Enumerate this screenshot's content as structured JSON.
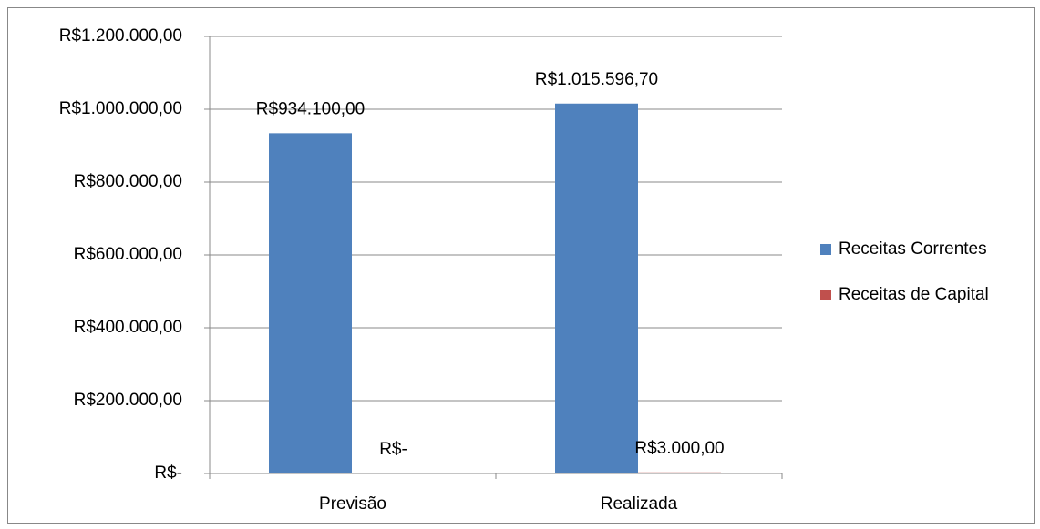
{
  "chart_data": {
    "type": "bar",
    "categories": [
      "Previsão",
      "Realizada"
    ],
    "series": [
      {
        "name": "Receitas Correntes",
        "color": "#4f81bd",
        "values": [
          934100,
          1015596.7
        ],
        "value_labels": [
          "R$934.100,00",
          "R$1.015.596,70"
        ]
      },
      {
        "name": "Receitas de Capital",
        "color": "#c0504d",
        "values": [
          0,
          3000
        ],
        "value_labels": [
          "R$-",
          "R$3.000,00"
        ]
      }
    ],
    "ylim": [
      0,
      1200000
    ],
    "yticks": [
      {
        "value": 0,
        "label": "R$-"
      },
      {
        "value": 200000,
        "label": "R$200.000,00"
      },
      {
        "value": 400000,
        "label": "R$400.000,00"
      },
      {
        "value": 600000,
        "label": "R$600.000,00"
      },
      {
        "value": 800000,
        "label": "R$800.000,00"
      },
      {
        "value": 1000000,
        "label": "R$1.000.000,00"
      },
      {
        "value": 1200000,
        "label": "R$1.200.000,00"
      }
    ],
    "grid": true,
    "legend": "right"
  }
}
